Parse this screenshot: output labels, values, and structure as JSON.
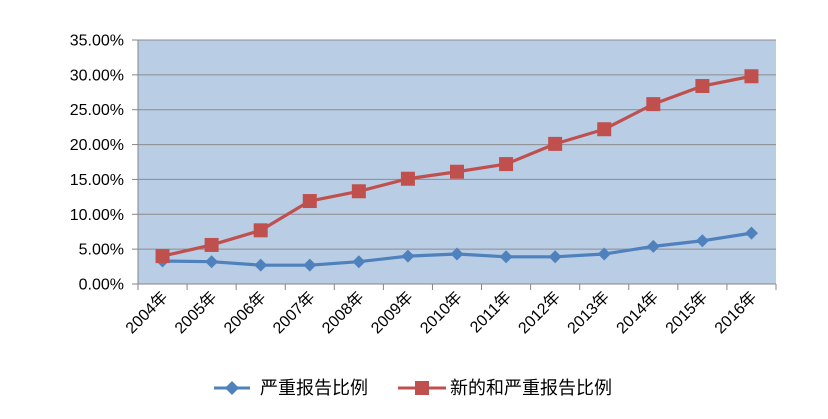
{
  "chart_data": {
    "type": "line",
    "categories": [
      "2004年",
      "2005年",
      "2006年",
      "2007年",
      "2008年",
      "2009年",
      "2010年",
      "2011年",
      "2012年",
      "2013年",
      "2014年",
      "2015年",
      "2016年"
    ],
    "ylim": [
      0,
      35
    ],
    "ytick_values": [
      0,
      5,
      10,
      15,
      20,
      25,
      30,
      35
    ],
    "ytick_labels": [
      "0.00%",
      "5.00%",
      "10.00%",
      "15.00%",
      "20.00%",
      "25.00%",
      "30.00%",
      "35.00%"
    ],
    "grid": true,
    "legend_position": "bottom",
    "series": [
      {
        "name": "严重报告比例",
        "color": "#4f81bd",
        "marker": "diamond",
        "values": [
          3.3,
          3.2,
          2.7,
          2.7,
          3.2,
          4.0,
          4.3,
          3.9,
          3.9,
          4.3,
          5.4,
          6.2,
          7.3
        ]
      },
      {
        "name": "新的和严重报告比例",
        "color": "#c0504d",
        "marker": "square",
        "values": [
          4.0,
          5.6,
          7.7,
          11.9,
          13.3,
          15.1,
          16.1,
          17.2,
          20.1,
          22.2,
          25.8,
          28.4,
          29.8
        ]
      }
    ]
  },
  "colors": {
    "plot_background": "#b9cde5",
    "gridline": "#8c8c8c",
    "axis": "#868686"
  }
}
